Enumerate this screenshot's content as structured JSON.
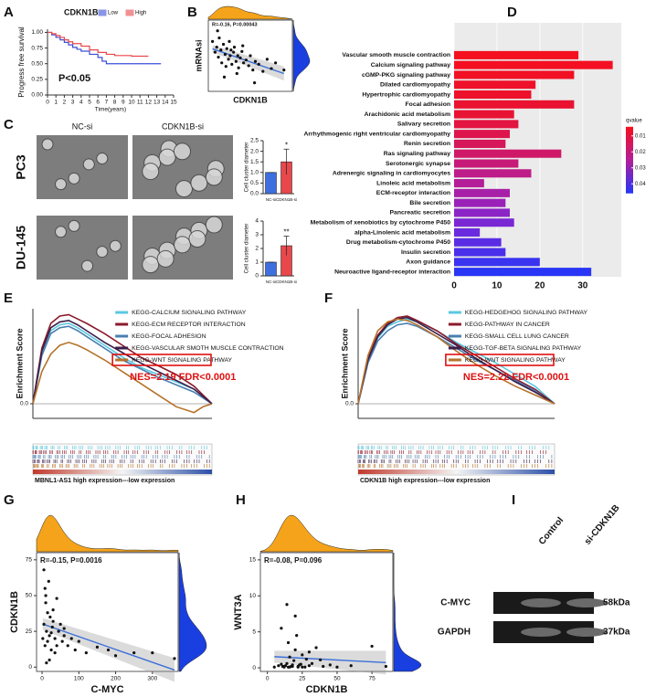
{
  "chart_data": [
    {
      "type": "line",
      "panel": "A",
      "title": "CDKN1B",
      "step": true,
      "legend": "top",
      "xlabel": "Time(years)",
      "ylabel": "Progress free survival",
      "annotation": "P<0.05",
      "xlim": [
        0,
        15
      ],
      "xticks": [
        0,
        1,
        2,
        3,
        4,
        5,
        6,
        7,
        8,
        9,
        10,
        11,
        12,
        13,
        14,
        15
      ],
      "ylim": [
        0,
        1.05
      ],
      "yticks": [
        {
          "value": 0,
          "label": "0.00"
        },
        {
          "value": 0.25,
          "label": "0.25"
        },
        {
          "value": 0.5,
          "label": "0.50"
        },
        {
          "value": 0.75,
          "label": "0.75"
        },
        {
          "value": 1,
          "label": "1.00"
        }
      ],
      "series": [
        {
          "name": "Low",
          "color": "#3a4fd6",
          "x": [
            0,
            0.5,
            1,
            1.5,
            2,
            2.5,
            3,
            3.5,
            4,
            5,
            6,
            6.5,
            7,
            8,
            10,
            12,
            13.5
          ],
          "values": [
            1,
            0.96,
            0.92,
            0.88,
            0.84,
            0.8,
            0.76,
            0.73,
            0.7,
            0.65,
            0.6,
            0.54,
            0.5,
            0.5,
            0.5,
            0.5,
            0.5
          ]
        },
        {
          "name": "High",
          "color": "#e8474c",
          "x": [
            0,
            0.5,
            1,
            1.5,
            2,
            2.5,
            3,
            4,
            5,
            6,
            7,
            8,
            10,
            12
          ],
          "values": [
            1,
            0.98,
            0.95,
            0.92,
            0.88,
            0.85,
            0.82,
            0.78,
            0.72,
            0.68,
            0.65,
            0.63,
            0.62,
            0.62
          ]
        }
      ]
    },
    {
      "type": "scatter",
      "panel": "B",
      "xlabel": "CDKN1B",
      "ylabel": "mRNAsi",
      "annotation": "R=-0.16, P=0.00043",
      "marginals": true,
      "fit": true,
      "xlim": [
        0,
        10
      ],
      "ylim": [
        0,
        1
      ],
      "color": "#111111",
      "x": [
        0.5,
        0.8,
        1,
        1.2,
        1.3,
        1.5,
        1.6,
        1.8,
        2,
        2.1,
        2.2,
        2.4,
        2.5,
        2.6,
        2.8,
        3,
        3.1,
        3.3,
        3.5,
        3.6,
        3.8,
        4,
        4.2,
        4.5,
        4.8,
        5,
        5.3,
        5.6,
        6,
        6.5,
        7,
        7.5,
        8,
        9,
        1.1,
        1.9,
        2.7,
        3.4,
        4.1,
        5.5
      ],
      "values": [
        0.7,
        0.55,
        0.62,
        0.48,
        0.75,
        0.58,
        0.4,
        0.66,
        0.52,
        0.35,
        0.6,
        0.45,
        0.7,
        0.5,
        0.38,
        0.55,
        0.62,
        0.42,
        0.5,
        0.33,
        0.47,
        0.56,
        0.4,
        0.44,
        0.36,
        0.5,
        0.3,
        0.42,
        0.38,
        0.28,
        0.45,
        0.32,
        0.4,
        0.3,
        0.85,
        0.2,
        0.58,
        0.25,
        0.64,
        0.12
      ]
    },
    {
      "type": "images",
      "panel": "C",
      "columns": [
        "NC-si",
        "CDKN1B-si"
      ],
      "rows": [
        "PC3",
        "DU-145"
      ]
    },
    {
      "type": "bar",
      "ylabel": "Cell cluster diameter",
      "categories": [
        "NC-si",
        "CDKN1B-si"
      ],
      "values": [
        1.0,
        1.5
      ],
      "errors": [
        0,
        0.6
      ],
      "colors": [
        "#3d6fe0",
        "#e8474c"
      ],
      "significance": "*",
      "ylim": [
        0,
        2.5
      ],
      "yticks": [
        {
          "value": 0,
          "label": "0.0"
        },
        {
          "value": 0.5,
          "label": "0.5"
        },
        {
          "value": 1,
          "label": "1.0"
        },
        {
          "value": 1.5,
          "label": "1.5"
        },
        {
          "value": 2,
          "label": "2.0"
        },
        {
          "value": 2.5,
          "label": "2.5"
        }
      ]
    },
    {
      "type": "bar",
      "ylabel": "Cell cluster diameter",
      "categories": [
        "NC-si",
        "CDKN1B-si"
      ],
      "values": [
        1.0,
        2.2
      ],
      "errors": [
        0,
        0.7
      ],
      "colors": [
        "#3d6fe0",
        "#e8474c"
      ],
      "significance": "**",
      "ylim": [
        0,
        4
      ],
      "yticks": [
        0,
        1,
        2,
        3,
        4
      ]
    },
    {
      "type": "hbar",
      "panel": "D",
      "categories": [
        "Vascular smooth muscle contraction",
        "Calcium signaling pathway",
        "cGMP-PKG signaling pathway",
        "Dilated cardiomyopathy",
        "Hypertrophic cardiomyopathy",
        "Focal adhesion",
        "Arachidonic acid metabolism",
        "Salivary secretion",
        "Arrhythmogenic right ventricular cardiomyopathy",
        "Renin secretion",
        "Ras signaling pathway",
        "Serotonergic synapse",
        "Adrenergic signaling in cardiomyocytes",
        "Linoleic acid metabolism",
        "ECM-receptor interaction",
        "Bile secretion",
        "Pancreatic secretion",
        "Metabolism of xenobiotics by cytochrome P450",
        "alpha-Linolenic acid metabolism",
        "Drug metabolism-cytochrome P450",
        "Insulin secretion",
        "Axon guidance",
        "Neuroactive ligand-receptor interaction"
      ],
      "values": [
        29,
        37,
        28,
        19,
        18,
        28,
        14,
        15,
        13,
        12,
        25,
        15,
        18,
        7,
        13,
        12,
        13,
        14,
        6,
        11,
        12,
        20,
        32
      ],
      "colors": [
        "#f5101f",
        "#f41022",
        "#f21025",
        "#ef1129",
        "#ed112c",
        "#ea1230",
        "#e81333",
        "#e31440",
        "#dd154c",
        "#d6175a",
        "#cf1868",
        "#c71a78",
        "#be1c88",
        "#b41e98",
        "#a820a8",
        "#9b22b8",
        "#8c25c6",
        "#7a28d4",
        "#6a2bdf",
        "#5a2de5",
        "#4a30ea",
        "#3a33f0",
        "#2a36f5"
      ],
      "xlim": [
        0,
        39
      ],
      "xticks": [
        0,
        10,
        20,
        30
      ],
      "grid": true,
      "colorbar": {
        "title": "qvalue",
        "clim": [
          0.005,
          0.045
        ],
        "ticks": [
          0.01,
          0.02,
          0.03,
          0.04
        ],
        "colors": [
          "#f5101f",
          "#b41e98",
          "#2a36f5"
        ]
      }
    },
    {
      "type": "line",
      "panel": "E",
      "legend": "upper right",
      "highlight_last": true,
      "zero_line": true,
      "ylabel": "Enrichment Score",
      "xlabel": "MBNL1-AS1 high expression---low expression",
      "annotation": "NES=2.19 FDR<0.0001",
      "xlim": [
        0,
        100
      ],
      "ylim": [
        -0.1,
        0.65
      ],
      "yticks": [
        {
          "value": 0,
          "label": "0.0"
        }
      ],
      "x": [
        0,
        5,
        10,
        15,
        20,
        25,
        30,
        40,
        50,
        60,
        70,
        80,
        90,
        95,
        100
      ],
      "series": [
        {
          "name": "KEGG-CALCIUM SIGNALING PATHWAY",
          "color": "#5bc8e0",
          "values": [
            0,
            0.35,
            0.5,
            0.54,
            0.55,
            0.52,
            0.48,
            0.4,
            0.32,
            0.25,
            0.2,
            0.15,
            0.1,
            0.05,
            0
          ]
        },
        {
          "name": "KEGG-ECM RECEPTOR INTERACTION",
          "color": "#8b1a2b",
          "values": [
            0,
            0.38,
            0.55,
            0.6,
            0.61,
            0.58,
            0.55,
            0.48,
            0.4,
            0.32,
            0.26,
            0.2,
            0.12,
            0.06,
            0
          ]
        },
        {
          "name": "KEGG-FOCAL ADHESION",
          "color": "#4a7fb0",
          "values": [
            0,
            0.33,
            0.48,
            0.52,
            0.53,
            0.5,
            0.46,
            0.38,
            0.3,
            0.24,
            0.18,
            0.13,
            0.08,
            0.04,
            0
          ]
        },
        {
          "name": "KEGG-VASCULAR SMOTH MUSCLE CONTRACTION",
          "color": "#3d1e4a",
          "values": [
            0,
            0.36,
            0.52,
            0.56,
            0.57,
            0.54,
            0.5,
            0.42,
            0.35,
            0.28,
            0.22,
            0.16,
            0.1,
            0.05,
            0
          ]
        },
        {
          "name": "KEGG-WNT SIGNALING PATHWAY",
          "color": "#b5722a",
          "values": [
            0,
            0.22,
            0.34,
            0.4,
            0.42,
            0.4,
            0.37,
            0.3,
            0.22,
            0.14,
            0.06,
            -0.02,
            -0.06,
            -0.02,
            0
          ]
        }
      ]
    },
    {
      "type": "line",
      "panel": "F",
      "legend": "upper right",
      "highlight_last": true,
      "zero_line": true,
      "ylabel": "Enrichment Score",
      "xlabel": "CDKN1B high expression---low expression",
      "annotation": "NES=2.22 FDR<0.0001",
      "xlim": [
        0,
        100
      ],
      "ylim": [
        -0.1,
        0.65
      ],
      "yticks": [
        {
          "value": 0,
          "label": "0.0"
        }
      ],
      "x": [
        0,
        5,
        10,
        15,
        20,
        25,
        30,
        40,
        50,
        60,
        70,
        80,
        90,
        95,
        100
      ],
      "series": [
        {
          "name": "KEGG-HEDGEHOG SIGNALING PATHWAY",
          "color": "#5bc8e0",
          "values": [
            0,
            0.3,
            0.45,
            0.53,
            0.56,
            0.58,
            0.56,
            0.5,
            0.42,
            0.35,
            0.28,
            0.2,
            0.12,
            0.06,
            0
          ]
        },
        {
          "name": "KEGG-PATHWAY IN CANCER",
          "color": "#8b1a2b",
          "values": [
            0,
            0.32,
            0.47,
            0.55,
            0.59,
            0.6,
            0.57,
            0.5,
            0.41,
            0.33,
            0.25,
            0.17,
            0.1,
            0.05,
            0
          ]
        },
        {
          "name": "KEGG-SMALL CELL LUNG CANCER",
          "color": "#4a7fb0",
          "values": [
            0,
            0.28,
            0.43,
            0.5,
            0.54,
            0.55,
            0.53,
            0.46,
            0.38,
            0.3,
            0.23,
            0.16,
            0.09,
            0.04,
            0
          ]
        },
        {
          "name": "KEGG-TGF-BETA SIGNALING PATHWAY",
          "color": "#3d1e4a",
          "values": [
            0,
            0.3,
            0.46,
            0.54,
            0.58,
            0.59,
            0.56,
            0.48,
            0.4,
            0.31,
            0.23,
            0.15,
            0.08,
            0.04,
            0
          ]
        },
        {
          "name": "KEGG-WNT SIGNALING PATHWAY",
          "color": "#b5722a",
          "values": [
            0,
            0.33,
            0.5,
            0.56,
            0.58,
            0.57,
            0.54,
            0.46,
            0.36,
            0.27,
            0.19,
            0.12,
            0.06,
            0.03,
            0
          ]
        }
      ]
    },
    {
      "type": "scatter",
      "panel": "G",
      "xlabel": "C-MYC",
      "ylabel": "CDKN1B",
      "annotation": "R=-0.15, P=0.0016",
      "marginals": true,
      "fit": true,
      "xlim": [
        -15,
        370
      ],
      "ylim": [
        -3,
        80
      ],
      "xticks": [
        0,
        100,
        200,
        300
      ],
      "yticks": [
        0,
        25,
        50,
        75
      ],
      "color": "#111111",
      "x": [
        2,
        5,
        8,
        10,
        12,
        15,
        18,
        20,
        22,
        25,
        28,
        30,
        35,
        40,
        45,
        50,
        55,
        60,
        70,
        80,
        90,
        100,
        120,
        150,
        180,
        200,
        250,
        300,
        360,
        5,
        10,
        15,
        20,
        30,
        40,
        8,
        12,
        25,
        35,
        60
      ],
      "values": [
        20,
        30,
        15,
        45,
        25,
        18,
        60,
        22,
        35,
        12,
        28,
        40,
        20,
        15,
        25,
        30,
        18,
        22,
        15,
        20,
        12,
        18,
        10,
        14,
        12,
        8,
        10,
        10,
        6,
        68,
        50,
        38,
        5,
        32,
        48,
        55,
        3,
        24,
        10,
        27
      ]
    },
    {
      "type": "scatter",
      "panel": "H",
      "xlabel": "CDKN1B",
      "ylabel": "WNT3A",
      "annotation": "R=-0.08, P=0.096",
      "marginals": true,
      "fit": true,
      "xlim": [
        -5,
        90
      ],
      "ylim": [
        -0.5,
        16
      ],
      "xticks": [
        0,
        25,
        50,
        75
      ],
      "yticks": [
        0,
        5,
        10,
        15
      ],
      "color": "#111111",
      "x": [
        5,
        8,
        10,
        12,
        14,
        15,
        16,
        18,
        20,
        22,
        25,
        28,
        30,
        32,
        35,
        40,
        45,
        50,
        60,
        75,
        85,
        10,
        12,
        15,
        18,
        20,
        22,
        25,
        13,
        17,
        19,
        21,
        24,
        27,
        30,
        11,
        14,
        16,
        23,
        38
      ],
      "values": [
        0.1,
        0.3,
        0.5,
        0.2,
        8.8,
        0.1,
        1.5,
        0.4,
        2.5,
        0.2,
        0.1,
        1.2,
        0.3,
        0.6,
        2.8,
        0.2,
        0.4,
        0.1,
        0.3,
        3.0,
        0.2,
        5.5,
        0.1,
        3.5,
        0.2,
        7.2,
        0.1,
        1.8,
        0.3,
        0.2,
        1.0,
        4.5,
        0.5,
        0.1,
        2.2,
        0.2,
        0.6,
        0.1,
        0.4,
        1.1
      ]
    },
    {
      "type": "blot",
      "panel": "I",
      "columns": [
        "Control",
        "si-CDKN1B"
      ],
      "rows": [
        "C-MYC",
        "GAPDH"
      ],
      "sizes": [
        "58kDa",
        "37kDa"
      ]
    }
  ]
}
